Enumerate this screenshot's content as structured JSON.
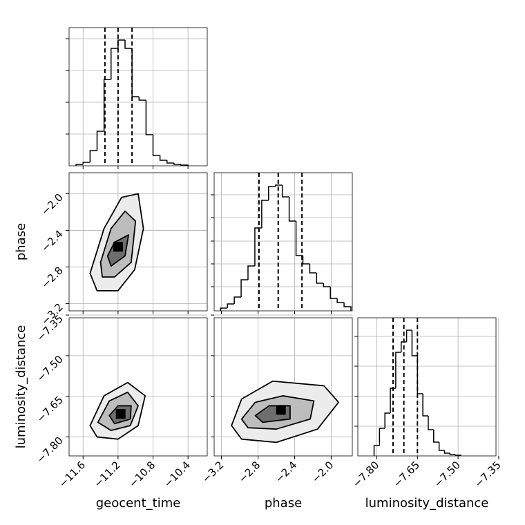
{
  "chart_data": [
    {
      "type": "histogram",
      "bins": [
        -11.68,
        -11.6,
        -11.52,
        -11.44,
        -11.36,
        -11.28,
        -11.2,
        -11.12,
        -11.04,
        -10.96,
        -10.88,
        -10.8,
        -10.72,
        -10.64,
        -10.56,
        -10.48,
        -10.4
      ],
      "values": [
        2,
        5,
        22,
        50,
        125,
        170,
        182,
        170,
        100,
        95,
        45,
        15,
        8,
        4,
        2,
        1
      ],
      "quantiles": [
        -11.35,
        -11.2,
        -11.04
      ],
      "xlim": [
        -11.76,
        -10.18
      ],
      "xticks": [
        -11.6,
        -11.2,
        -10.8,
        -10.4
      ],
      "ylim": [
        0,
        200
      ],
      "yticks": [
        46,
        92,
        138,
        184
      ],
      "grid": true,
      "color": "#000000"
    },
    {
      "type": "contour",
      "contours": [
        {
          "x": [
            -11.52,
            -11.36,
            -11.16,
            -10.97,
            -10.91,
            -11.01,
            -11.2,
            -11.44
          ],
          "y": [
            -2.87,
            -2.38,
            -2.04,
            -2.0,
            -2.38,
            -2.83,
            -3.06,
            -3.06
          ],
          "fill": "#ececec"
        },
        {
          "x": [
            -11.4,
            -11.28,
            -11.12,
            -11.0,
            -11.05,
            -11.24,
            -11.38
          ],
          "y": [
            -2.75,
            -2.38,
            -2.19,
            -2.3,
            -2.75,
            -2.91,
            -2.91
          ],
          "fill": "#bdbdbd"
        },
        {
          "x": [
            -11.32,
            -11.24,
            -11.08,
            -11.12,
            -11.28
          ],
          "y": [
            -2.68,
            -2.53,
            -2.45,
            -2.68,
            -2.79
          ],
          "fill": "#6e6e6e"
        }
      ],
      "peak": [
        -11.2,
        -2.58
      ],
      "xlim": [
        -11.76,
        -10.18
      ],
      "xticks": [
        -11.6,
        -11.2,
        -10.8,
        -10.4
      ],
      "ylim": [
        -3.28,
        -1.77
      ],
      "yticks": [
        {
          "value": -3.2,
          "label": "−3.2"
        },
        {
          "value": -2.8,
          "label": "−2.8"
        },
        {
          "value": -2.4,
          "label": "−2.4"
        },
        {
          "value": -2.0,
          "label": "−2.0"
        }
      ],
      "ylabel": "phase",
      "grid": true
    },
    {
      "type": "histogram",
      "bins": [
        -3.21,
        -3.135,
        -3.06,
        -2.985,
        -2.91,
        -2.835,
        -2.76,
        -2.685,
        -2.61,
        -2.535,
        -2.46,
        -2.385,
        -2.31,
        -2.235,
        -2.16,
        -2.085,
        -2.01,
        -1.935,
        -1.86,
        -1.785
      ],
      "values": [
        4,
        10,
        20,
        45,
        65,
        120,
        160,
        180,
        182,
        165,
        130,
        80,
        68,
        55,
        40,
        35,
        18,
        12,
        6
      ],
      "quantiles": [
        -2.79,
        -2.58,
        -2.32
      ],
      "xlim": [
        -3.28,
        -1.77
      ],
      "xticks": [
        -3.2,
        -2.8,
        -2.4,
        -2.0
      ],
      "ylim": [
        0,
        200
      ],
      "yticks": [
        35,
        68,
        101,
        135,
        168
      ],
      "grid": true,
      "color": "#000000"
    },
    {
      "type": "contour",
      "contours": [
        {
          "x": [
            -11.52,
            -11.36,
            -11.09,
            -10.89,
            -10.97,
            -11.2,
            -11.44
          ],
          "y": [
            -7.758,
            -7.648,
            -7.599,
            -7.648,
            -7.758,
            -7.808,
            -7.8
          ],
          "fill": "#ececec"
        },
        {
          "x": [
            -11.43,
            -11.3,
            -11.09,
            -10.97,
            -11.06,
            -11.28
          ],
          "y": [
            -7.746,
            -7.667,
            -7.635,
            -7.685,
            -7.758,
            -7.776
          ],
          "fill": "#bdbdbd"
        },
        {
          "x": [
            -11.3,
            -11.2,
            -11.05,
            -11.06,
            -11.24
          ],
          "y": [
            -7.721,
            -7.685,
            -7.685,
            -7.734,
            -7.751
          ],
          "fill": "#6e6e6e"
        }
      ],
      "peak": [
        -11.17,
        -7.715
      ],
      "xlim": [
        -11.76,
        -10.18
      ],
      "xticks": [
        {
          "value": -11.6,
          "label": "−11.6"
        },
        {
          "value": -11.2,
          "label": "−11.2"
        },
        {
          "value": -10.8,
          "label": "−10.8"
        },
        {
          "value": -10.4,
          "label": "−10.4"
        }
      ],
      "ylim": [
        -7.87,
        -7.36
      ],
      "yticks": [
        {
          "value": -7.8,
          "label": "−7.80"
        },
        {
          "value": -7.65,
          "label": "−7.65"
        },
        {
          "value": -7.5,
          "label": "−7.50"
        },
        {
          "value": -7.35,
          "label": "−7.35"
        }
      ],
      "xlabel": "geocent_time",
      "ylabel": "luminosity_distance",
      "grid": true
    },
    {
      "type": "contour",
      "contours": [
        {
          "x": [
            -3.09,
            -2.98,
            -2.64,
            -2.08,
            -1.92,
            -2.15,
            -2.6,
            -2.98
          ],
          "y": [
            -7.758,
            -7.66,
            -7.594,
            -7.611,
            -7.672,
            -7.771,
            -7.82,
            -7.808
          ],
          "fill": "#ececec"
        },
        {
          "x": [
            -2.98,
            -2.83,
            -2.53,
            -2.19,
            -2.23,
            -2.6,
            -2.91
          ],
          "y": [
            -7.734,
            -7.672,
            -7.648,
            -7.667,
            -7.734,
            -7.771,
            -7.766
          ],
          "fill": "#bdbdbd"
        },
        {
          "x": [
            -2.83,
            -2.68,
            -2.45,
            -2.45,
            -2.75
          ],
          "y": [
            -7.721,
            -7.685,
            -7.685,
            -7.734,
            -7.746
          ],
          "fill": "#6e6e6e"
        }
      ],
      "peak": [
        -2.55,
        -7.7
      ],
      "xlim": [
        -3.28,
        -1.77
      ],
      "xticks": [
        {
          "value": -3.2,
          "label": "−3.2"
        },
        {
          "value": -2.8,
          "label": "−2.8"
        },
        {
          "value": -2.4,
          "label": "−2.4"
        },
        {
          "value": -2.0,
          "label": "−2.0"
        }
      ],
      "ylim": [
        -7.87,
        -7.36
      ],
      "yticks": [
        -7.8,
        -7.65,
        -7.5,
        -7.35
      ],
      "xlabel": "phase",
      "grid": true
    },
    {
      "type": "histogram",
      "bins": [
        -7.81,
        -7.79,
        -7.77,
        -7.75,
        -7.73,
        -7.71,
        -7.69,
        -7.67,
        -7.65,
        -7.63,
        -7.61,
        -7.59,
        -7.57,
        -7.55,
        -7.53,
        -7.51,
        -7.49
      ],
      "values": [
        15,
        40,
        62,
        98,
        150,
        165,
        182,
        145,
        90,
        58,
        38,
        20,
        8,
        4,
        2,
        1
      ],
      "quantiles": [
        -7.74,
        -7.7,
        -7.65
      ],
      "xlim": [
        -7.87,
        -7.36
      ],
      "xticks": [
        {
          "value": -7.8,
          "label": "−7.80"
        },
        {
          "value": -7.65,
          "label": "−7.65"
        },
        {
          "value": -7.5,
          "label": "−7.50"
        },
        {
          "value": -7.35,
          "label": "−7.35"
        }
      ],
      "ylim": [
        0,
        200
      ],
      "yticks": [
        43,
        86,
        130,
        173
      ],
      "xlabel": "luminosity_distance",
      "grid": true,
      "color": "#000000"
    }
  ]
}
